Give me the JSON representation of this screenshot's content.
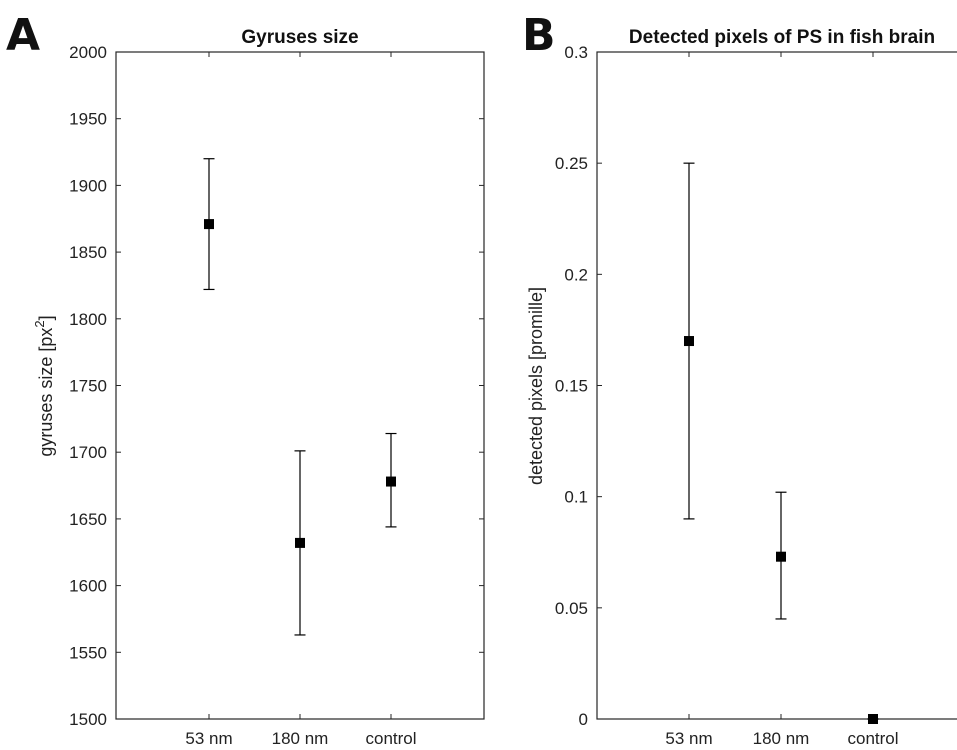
{
  "panels": [
    {
      "letter": "A"
    },
    {
      "letter": "B"
    }
  ],
  "chart_data": [
    {
      "type": "scatter",
      "title": "Gyruses size",
      "xlabel": "",
      "ylabel": "gyruses size [px",
      "ylabel_superscript": "2",
      "ylabel_suffix": "]",
      "categories": [
        "53 nm",
        "180 nm",
        "control"
      ],
      "values": [
        1871,
        1632,
        1678
      ],
      "err_low": [
        1822,
        1563,
        1644
      ],
      "err_high": [
        1920,
        1701,
        1714
      ],
      "ylim": [
        1500,
        2000
      ],
      "yticks": [
        1500,
        1550,
        1600,
        1650,
        1700,
        1750,
        1800,
        1850,
        1900,
        1950,
        2000
      ],
      "ytick_labels": [
        "1500",
        "1550",
        "1600",
        "1650",
        "1700",
        "1750",
        "1800",
        "1850",
        "1900",
        "1950",
        "2000"
      ],
      "marker": "square",
      "color": "#000000",
      "grid": false
    },
    {
      "type": "scatter",
      "title": "Detected pixels of PS in fish brain",
      "xlabel": "",
      "ylabel": "detected pixels [promille]",
      "categories": [
        "53 nm",
        "180 nm",
        "control"
      ],
      "values": [
        0.17,
        0.073,
        0.0
      ],
      "err_low": [
        0.09,
        0.045,
        0.0
      ],
      "err_high": [
        0.25,
        0.102,
        0.0
      ],
      "ylim": [
        0,
        0.3
      ],
      "yticks": [
        0,
        0.05,
        0.1,
        0.15,
        0.2,
        0.25,
        0.3
      ],
      "ytick_labels": [
        "0",
        "0.05",
        "0.1",
        "0.15",
        "0.2",
        "0.25",
        "0.3"
      ],
      "marker": "square",
      "color": "#000000",
      "grid": false
    }
  ]
}
